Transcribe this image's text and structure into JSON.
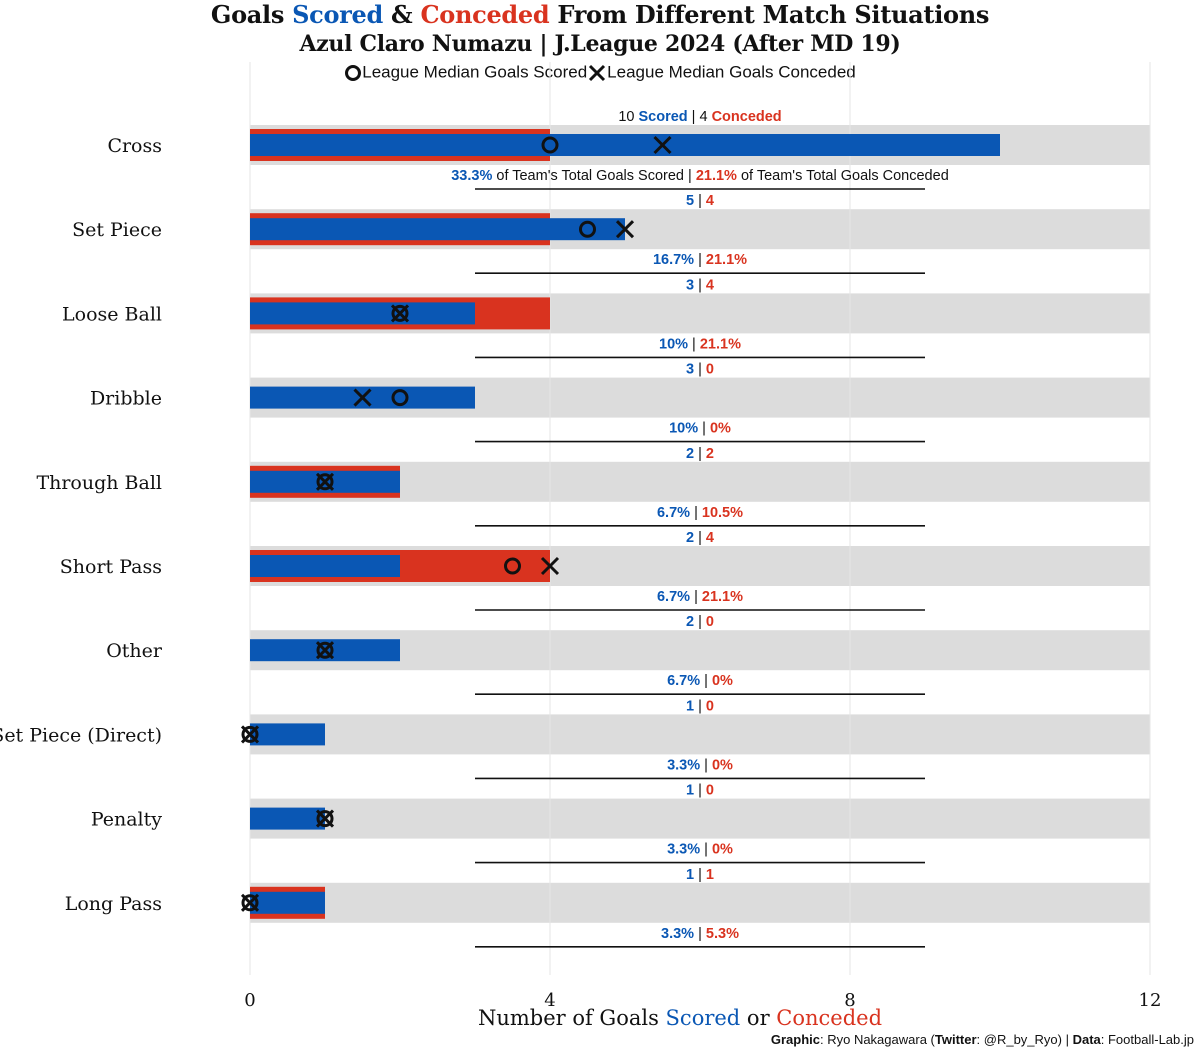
{
  "title": {
    "part1": "Goals ",
    "scored_word": "Scored",
    "part2": " & ",
    "conceded_word": "Conceded",
    "part3": " From Different Match Situations"
  },
  "subtitle": "Azul Claro Numazu | J.League 2024 (After MD 19)",
  "legend": {
    "scored_label": "League Median Goals Scored",
    "conceded_label": "League Median Goals Conceded"
  },
  "xlabel": {
    "part1": "Number of Goals ",
    "scored_word": "Scored",
    "part2": " or ",
    "conceded_word": "Conceded"
  },
  "credit": {
    "graphic_label": "Graphic",
    "graphic_value": ": Ryo Nakagawara (",
    "twitter_label": "Twitter",
    "twitter_value": ": @R_by_Ryo) | ",
    "data_label": "Data",
    "data_value": ": Football-Lab.jp"
  },
  "first_row_annotation": {
    "scored_suffix": " Scored",
    "sep": " | ",
    "conceded_suffix": " Conceded",
    "pct_scored_suffix": " of Team's Total Goals Scored",
    "pct_conceded_suffix": " of Team's Total Goals Conceded"
  },
  "colors": {
    "scored": "#0a57b4",
    "conceded": "#d9331f",
    "row_band": "#dcdcdc",
    "marker": "#111111"
  },
  "chart_data": {
    "type": "bar",
    "orientation": "horizontal",
    "title": "Goals Scored & Conceded From Different Match Situations",
    "subtitle": "Azul Claro Numazu | J.League 2024 (After MD 19)",
    "xlabel": "Number of Goals Scored or Conceded",
    "xlim": [
      0,
      12
    ],
    "xticks": [
      0,
      4,
      8,
      12
    ],
    "grid": true,
    "legend": "top-center",
    "categories": [
      "Cross",
      "Set Piece",
      "Loose Ball",
      "Dribble",
      "Through Ball",
      "Short Pass",
      "Other",
      "Set Piece (Direct)",
      "Penalty",
      "Long Pass"
    ],
    "series": [
      {
        "name": "Scored",
        "values": [
          10,
          5,
          3,
          3,
          2,
          2,
          2,
          1,
          1,
          1
        ]
      },
      {
        "name": "Conceded",
        "values": [
          4,
          4,
          4,
          0,
          2,
          4,
          0,
          0,
          0,
          1
        ]
      },
      {
        "name": "League Median Goals Scored",
        "marker": "circle",
        "values": [
          4,
          4.5,
          2,
          2,
          1,
          3.5,
          1,
          0,
          1,
          0
        ]
      },
      {
        "name": "League Median Goals Conceded",
        "marker": "x",
        "values": [
          5.5,
          5,
          2,
          1.5,
          1,
          4,
          1,
          0,
          1,
          0
        ]
      }
    ],
    "pct_scored": [
      "33.3%",
      "16.7%",
      "10%",
      "10%",
      "6.7%",
      "6.7%",
      "6.7%",
      "3.3%",
      "3.3%",
      "3.3%"
    ],
    "pct_conceded": [
      "21.1%",
      "21.1%",
      "21.1%",
      "0%",
      "10.5%",
      "21.1%",
      "0%",
      "0%",
      "0%",
      "5.3%"
    ]
  }
}
